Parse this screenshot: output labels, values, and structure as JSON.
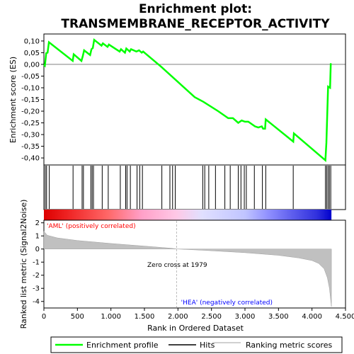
{
  "chart_data": {
    "type": "line",
    "title_line1": "Enrichment plot:",
    "title_line2": "TRANSMEMBRANE_RECEPTOR_ACTIVITY",
    "top_panel": {
      "ylabel": "Enrichment score (ES)",
      "ylim": [
        -0.43,
        0.13
      ],
      "yticks": [
        0.1,
        0.05,
        0.0,
        -0.05,
        -0.1,
        -0.15,
        -0.2,
        -0.25,
        -0.3,
        -0.35,
        -0.4
      ],
      "ytick_labels": [
        "0,10",
        "0,05",
        "0,00",
        "-0,05",
        "-0,10",
        "-0,15",
        "-0,20",
        "-0,25",
        "-0,30",
        "-0,35",
        "-0,40"
      ],
      "series": [
        {
          "name": "Enrichment profile",
          "color": "#00ff00",
          "points": [
            [
              0,
              0.0
            ],
            [
              15,
              -0.005
            ],
            [
              35,
              0.048
            ],
            [
              55,
              0.05
            ],
            [
              75,
              0.095
            ],
            [
              430,
              0.015
            ],
            [
              445,
              0.043
            ],
            [
              560,
              0.015
            ],
            [
              580,
              0.035
            ],
            [
              600,
              0.06
            ],
            [
              690,
              0.04
            ],
            [
              710,
              0.065
            ],
            [
              730,
              0.07
            ],
            [
              750,
              0.105
            ],
            [
              860,
              0.08
            ],
            [
              880,
              0.09
            ],
            [
              950,
              0.075
            ],
            [
              970,
              0.085
            ],
            [
              1130,
              0.055
            ],
            [
              1150,
              0.065
            ],
            [
              1210,
              0.05
            ],
            [
              1230,
              0.068
            ],
            [
              1280,
              0.055
            ],
            [
              1300,
              0.065
            ],
            [
              1380,
              0.055
            ],
            [
              1420,
              0.06
            ],
            [
              1460,
              0.05
            ],
            [
              1480,
              0.055
            ],
            [
              1750,
              -0.01
            ],
            [
              2000,
              -0.075
            ],
            [
              2250,
              -0.14
            ],
            [
              2380,
              -0.16
            ],
            [
              2600,
              -0.2
            ],
            [
              2750,
              -0.23
            ],
            [
              2820,
              -0.23
            ],
            [
              2900,
              -0.25
            ],
            [
              2950,
              -0.24
            ],
            [
              3000,
              -0.245
            ],
            [
              3050,
              -0.245
            ],
            [
              3150,
              -0.265
            ],
            [
              3200,
              -0.27
            ],
            [
              3250,
              -0.265
            ],
            [
              3270,
              -0.275
            ],
            [
              3300,
              -0.275
            ],
            [
              3310,
              -0.235
            ],
            [
              3720,
              -0.33
            ],
            [
              3730,
              -0.295
            ],
            [
              4200,
              -0.41
            ],
            [
              4215,
              -0.335
            ],
            [
              4240,
              -0.095
            ],
            [
              4270,
              -0.1
            ],
            [
              4280,
              0.005
            ]
          ]
        }
      ]
    },
    "hits": [
      20,
      40,
      80,
      435,
      570,
      590,
      700,
      720,
      740,
      870,
      960,
      1140,
      1220,
      1240,
      1290,
      1390,
      1430,
      1470,
      1760,
      1880,
      1920,
      1960,
      2370,
      2400,
      2460,
      2560,
      2700,
      2780,
      2900,
      2940,
      2990,
      3020,
      3140,
      3260,
      3310,
      3720,
      4200,
      4220,
      4240,
      4260,
      4280
    ],
    "bottom_panel": {
      "ylabel": "Ranked list metric (Signal2Noise)",
      "ylim": [
        -4.5,
        2.2
      ],
      "yticks": [
        2,
        1,
        0,
        -1,
        -2,
        -3,
        -4
      ],
      "ytick_labels": [
        "2",
        "1",
        "0",
        "-1",
        "-2",
        "-3",
        "-4"
      ],
      "metric_points": [
        [
          0,
          1.35
        ],
        [
          50,
          1.05
        ],
        [
          200,
          0.85
        ],
        [
          500,
          0.65
        ],
        [
          1000,
          0.42
        ],
        [
          1500,
          0.22
        ],
        [
          1900,
          0.06
        ],
        [
          1979,
          0.0
        ],
        [
          2400,
          -0.1
        ],
        [
          3000,
          -0.28
        ],
        [
          3500,
          -0.48
        ],
        [
          3800,
          -0.68
        ],
        [
          4000,
          -0.88
        ],
        [
          4100,
          -1.1
        ],
        [
          4180,
          -1.5
        ],
        [
          4230,
          -2.2
        ],
        [
          4260,
          -3.0
        ],
        [
          4290,
          -4.4
        ]
      ],
      "pos_label": "'AML' (positively correlated)",
      "neg_label": "'HEA' (negatively correlated)",
      "zero_cross_label": "Zero cross at 1979"
    },
    "xlabel": "Rank in Ordered Dataset",
    "xlim": [
      0,
      4500
    ],
    "xticks": [
      0,
      500,
      1000,
      1500,
      2000,
      2500,
      3000,
      3500,
      4000,
      4500
    ],
    "xtick_labels": [
      "0",
      "500",
      "1.000",
      "1.500",
      "2.000",
      "2.500",
      "3.000",
      "3.500",
      "4.000",
      "4.500"
    ],
    "n_genes": 4290,
    "zero_cross": 1979,
    "legend": {
      "items": [
        {
          "label": "Enrichment profile",
          "color": "#00ff00"
        },
        {
          "label": "Hits",
          "color": "#000000"
        },
        {
          "label": "Ranking metric scores",
          "color": "#c0c0c0"
        }
      ]
    },
    "colors": {
      "profile": "#00ff00",
      "metric_fill": "#c0c0c0",
      "pos_label": "#ff0000",
      "neg_label": "#0000ff"
    }
  }
}
